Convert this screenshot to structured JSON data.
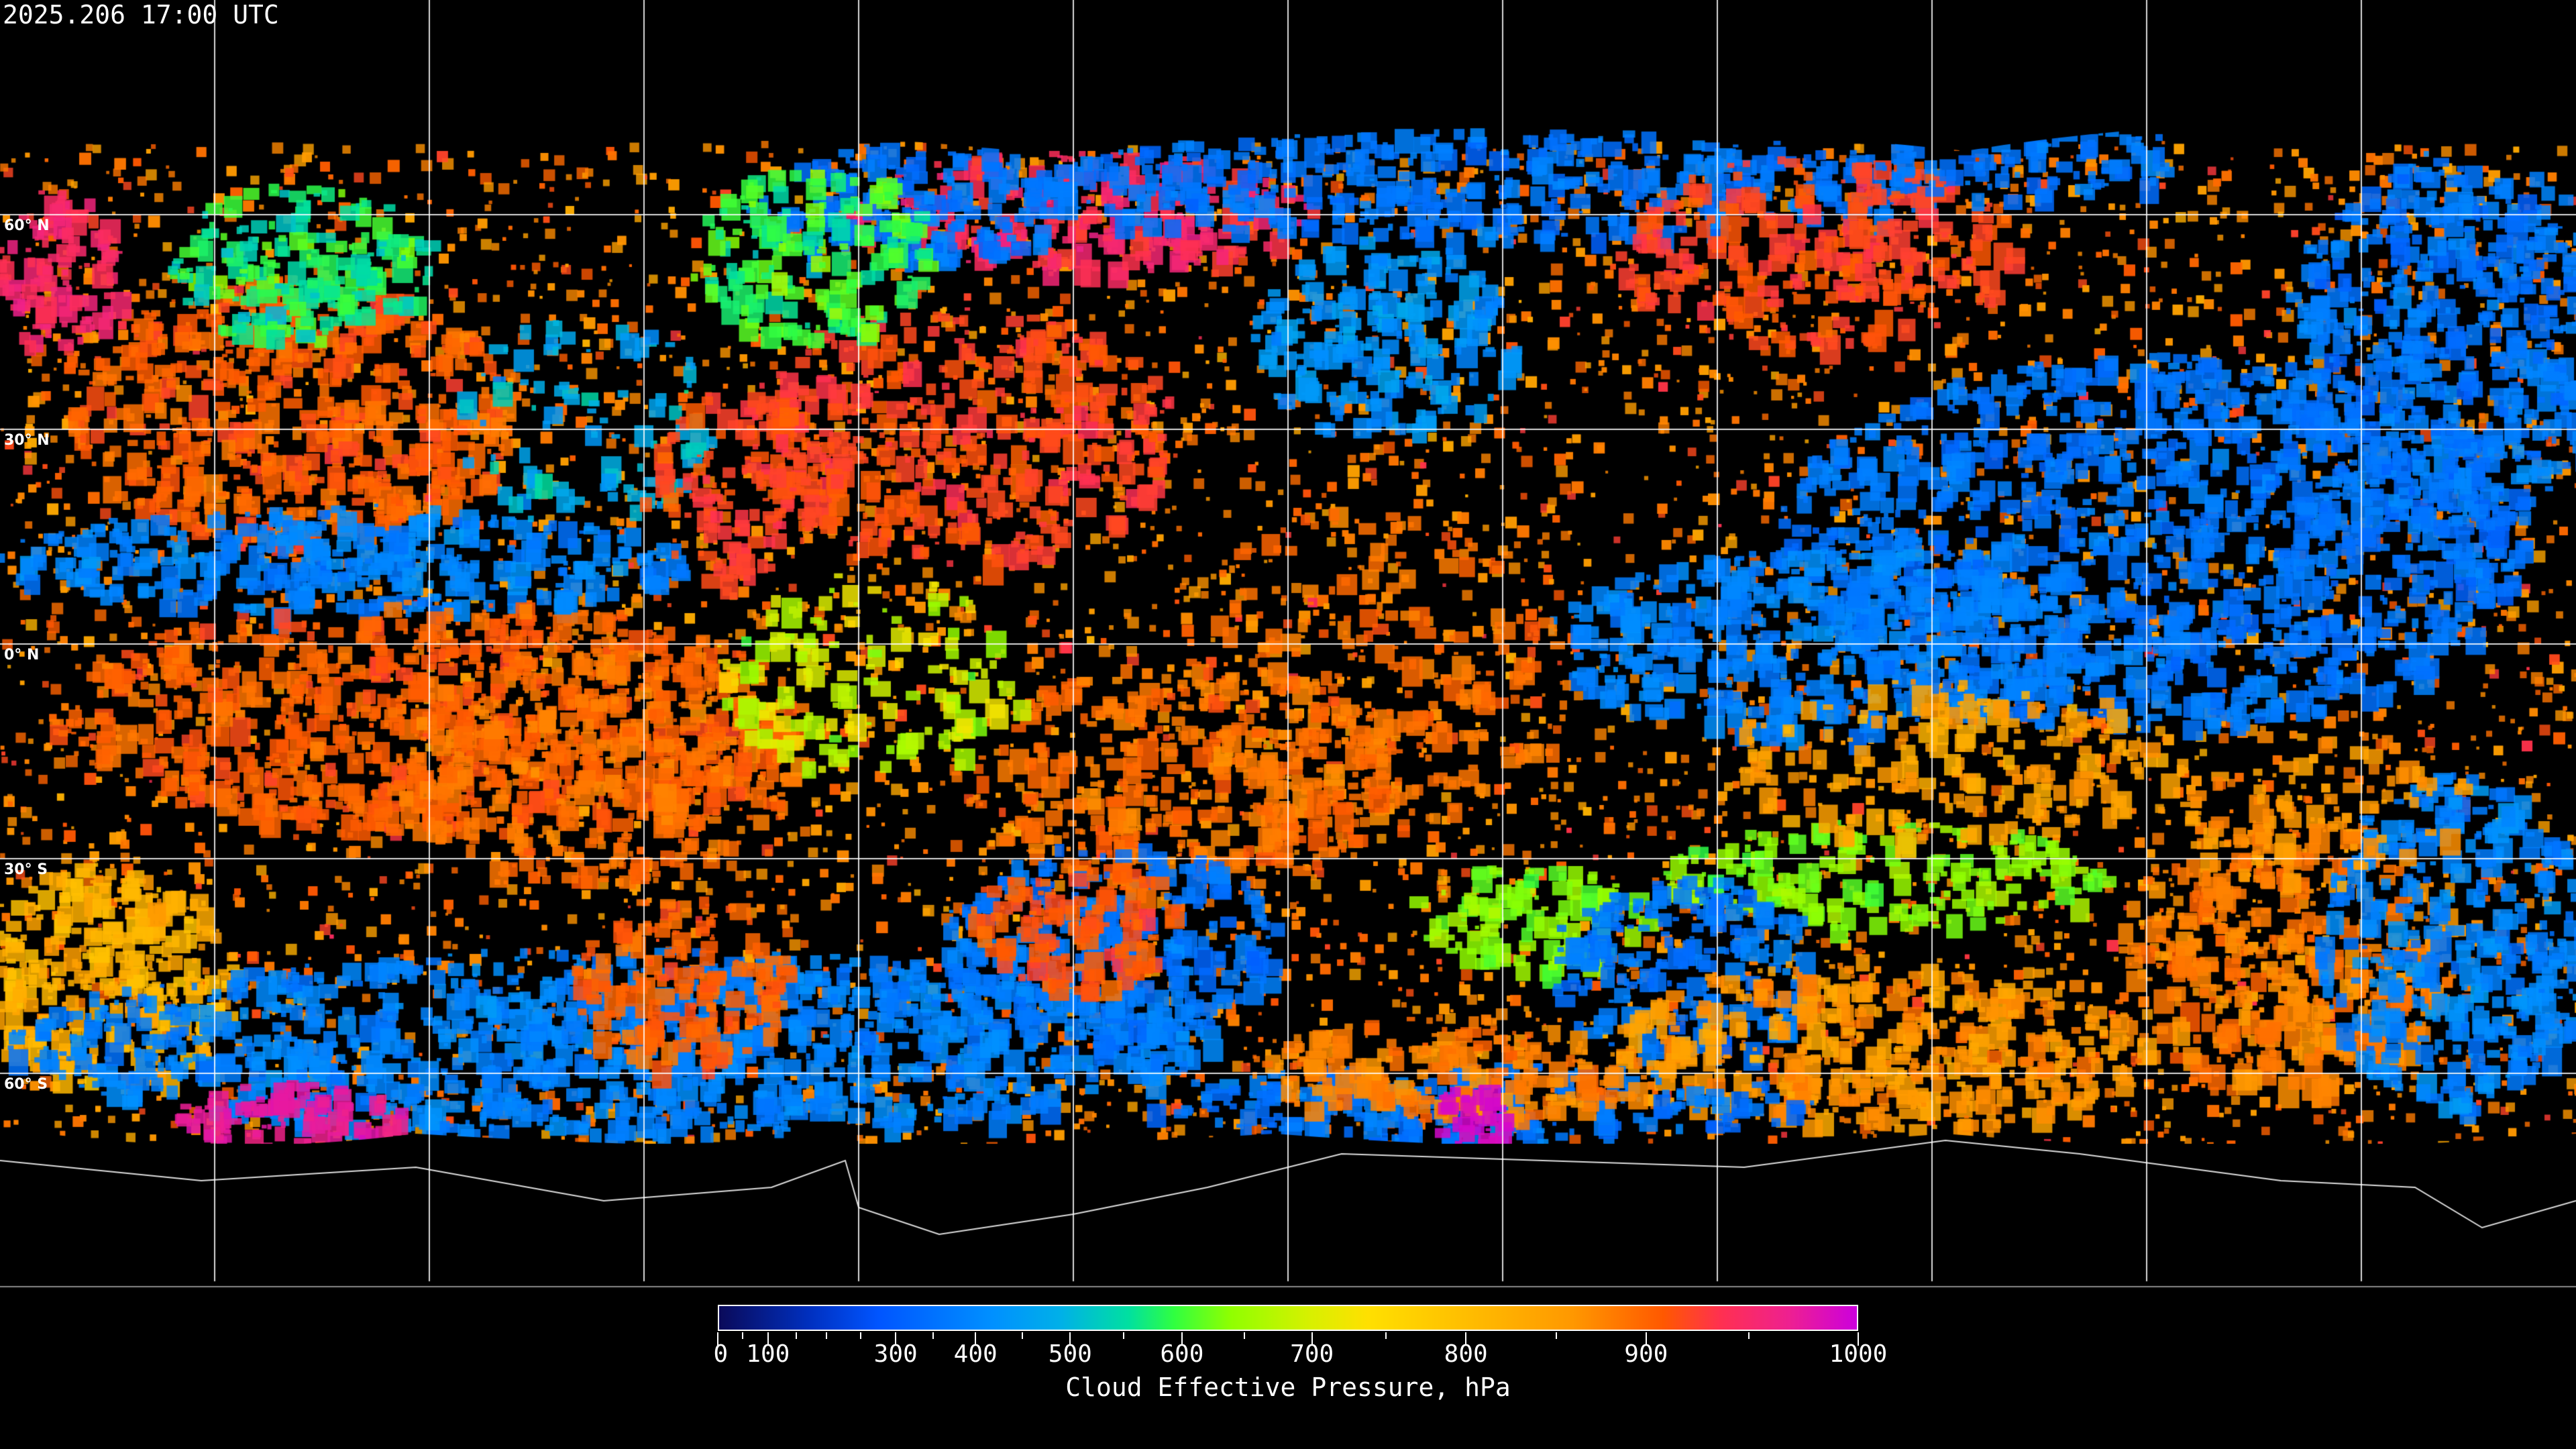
{
  "header": {
    "timestamp": "2025.206 17:00 UTC"
  },
  "map": {
    "projection": "equirectangular",
    "product": "cloud effective pressure",
    "gridlines": true,
    "gridline_color": "#ffffff",
    "no_data_color": "#000000",
    "latitude_labels": [
      "60° N",
      "30° N",
      "0° N",
      "30° S",
      "60° S"
    ]
  },
  "colorbar": {
    "title": "Cloud Effective Pressure, hPa",
    "min": 0,
    "max": 1000,
    "tick_labels": [
      "0",
      "100",
      "300",
      "400",
      "500",
      "600",
      "700",
      "800",
      "900",
      "1000"
    ],
    "colors": [
      "#0a0a5a",
      "#0055ff",
      "#00b0e8",
      "#30ff40",
      "#ffe000",
      "#ff9800",
      "#ff5800",
      "#cc00dd"
    ]
  }
}
